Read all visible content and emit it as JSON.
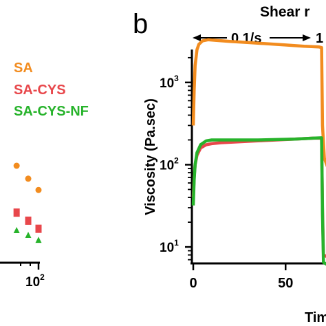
{
  "panel_label": "b",
  "header": {
    "title": "Shear r",
    "segment_1": "0.1/s",
    "segment_2": "1"
  },
  "legend": {
    "items": [
      {
        "label": "SA",
        "color": "#f28c1f"
      },
      {
        "label": "SA-CYS",
        "color": "#e8474b"
      },
      {
        "label": "SA-CYS-NF",
        "color": "#27b32b"
      }
    ]
  },
  "left_panel": {
    "x_tick_label_base": "10",
    "x_tick_label_exp": "2",
    "points": [
      {
        "series": "SA",
        "shape": "circle",
        "x": 40,
        "y": 3.0
      },
      {
        "series": "SA",
        "shape": "circle",
        "x": 65,
        "y": 2.6
      },
      {
        "series": "SA",
        "shape": "circle",
        "x": 100,
        "y": 2.25
      },
      {
        "series": "SA-CYS",
        "shape": "square",
        "x": 40,
        "y": 1.55
      },
      {
        "series": "SA-CYS",
        "shape": "square",
        "x": 65,
        "y": 1.3
      },
      {
        "series": "SA-CYS",
        "shape": "square",
        "x": 100,
        "y": 1.05
      },
      {
        "series": "SA-CYS-NF",
        "shape": "triangle",
        "x": 40,
        "y": 1.0
      },
      {
        "series": "SA-CYS-NF",
        "shape": "triangle",
        "x": 65,
        "y": 0.85
      },
      {
        "series": "SA-CYS-NF",
        "shape": "triangle",
        "x": 100,
        "y": 0.7
      }
    ]
  },
  "chart_data": {
    "type": "line",
    "xlabel": "Tim",
    "ylabel": "Viscosity (Pa.sec)",
    "xlim": [
      0,
      73
    ],
    "ylim_log10": [
      0.8,
      3.4
    ],
    "y_scale": "log",
    "x_ticks": [
      0,
      50
    ],
    "y_ticks": [
      {
        "base": "10",
        "exp": "1",
        "value": 10
      },
      {
        "base": "10",
        "exp": "2",
        "value": 100
      },
      {
        "base": "10",
        "exp": "3",
        "value": 1000
      }
    ],
    "series": [
      {
        "name": "SA",
        "color": "#f28c1f",
        "points": [
          [
            0,
            300
          ],
          [
            0.5,
            800
          ],
          [
            1,
            1600
          ],
          [
            2,
            2500
          ],
          [
            3,
            2900
          ],
          [
            5,
            3200
          ],
          [
            8,
            3300
          ],
          [
            12,
            3250
          ],
          [
            20,
            3150
          ],
          [
            30,
            3050
          ],
          [
            40,
            2950
          ],
          [
            50,
            2850
          ],
          [
            60,
            2750
          ],
          [
            68,
            2700
          ],
          [
            69.5,
            2650
          ],
          [
            70,
            300
          ],
          [
            71,
            120
          ],
          [
            73,
            90
          ]
        ]
      },
      {
        "name": "SA-CYS",
        "color": "#e8474b",
        "points": [
          [
            0,
            40
          ],
          [
            0.5,
            70
          ],
          [
            1,
            100
          ],
          [
            2,
            130
          ],
          [
            4,
            160
          ],
          [
            7,
            175
          ],
          [
            10,
            180
          ],
          [
            15,
            185
          ],
          [
            25,
            190
          ],
          [
            35,
            195
          ],
          [
            45,
            200
          ],
          [
            55,
            205
          ],
          [
            65,
            210
          ],
          [
            69.5,
            210
          ],
          [
            70,
            30
          ],
          [
            70.5,
            8
          ],
          [
            73,
            7.5
          ]
        ]
      },
      {
        "name": "SA-CYS-NF",
        "color": "#27b32b",
        "points": [
          [
            0,
            32
          ],
          [
            0.5,
            65
          ],
          [
            1,
            100
          ],
          [
            2,
            140
          ],
          [
            4,
            175
          ],
          [
            7,
            195
          ],
          [
            10,
            200
          ],
          [
            15,
            200
          ],
          [
            25,
            200
          ],
          [
            35,
            200
          ],
          [
            45,
            202
          ],
          [
            55,
            205
          ],
          [
            65,
            210
          ],
          [
            69.5,
            212
          ],
          [
            70,
            25
          ],
          [
            70.5,
            6.5
          ],
          [
            73,
            6
          ]
        ]
      }
    ]
  }
}
